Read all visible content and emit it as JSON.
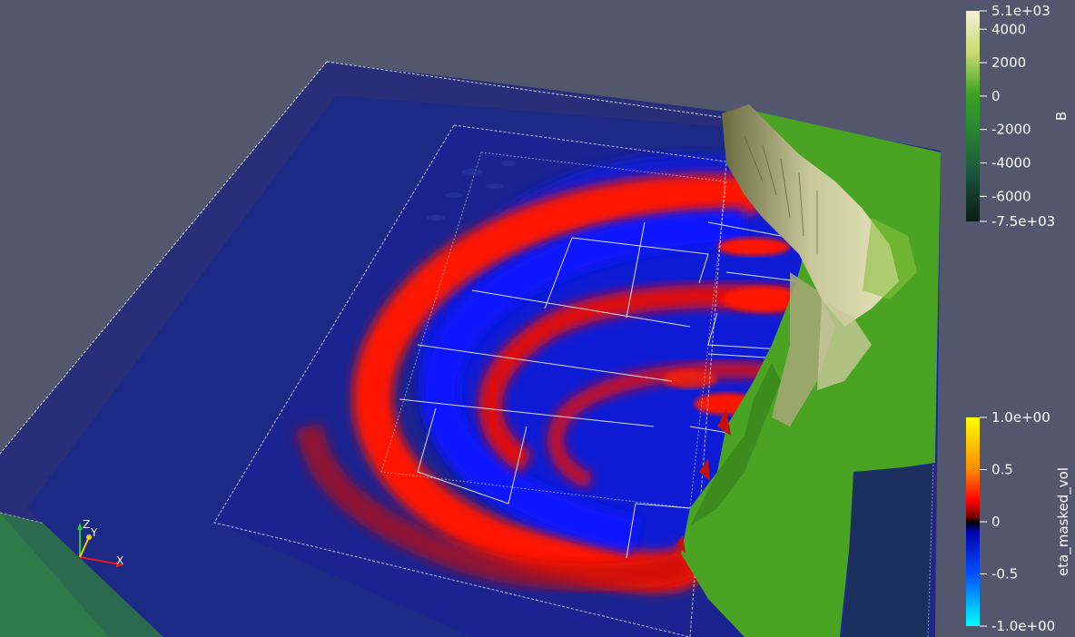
{
  "colorbar_top": {
    "title": "B",
    "ticks": [
      "5.1e+03",
      "4000",
      "2000",
      "0",
      "-2000",
      "-4000",
      "-6000",
      "-7.5e+03"
    ],
    "tick_values": [
      5100,
      4000,
      2000,
      0,
      -2000,
      -4000,
      -6000,
      -7500
    ],
    "range": [
      -7500,
      5100
    ],
    "colors": [
      "#f5f1d6",
      "#c8dc6e",
      "#5eb62c",
      "#2a9a26",
      "#23804a",
      "#1d5a3c",
      "#143a2c",
      "#0b1c16"
    ]
  },
  "colorbar_bottom": {
    "title": "eta_masked_vol",
    "ticks": [
      "1.0e+00",
      "0.5",
      "0",
      "-0.5",
      "-1.0e+00"
    ],
    "tick_values": [
      1.0,
      0.5,
      0,
      -0.5,
      -1.0
    ],
    "range": [
      -1.0,
      1.0
    ],
    "colors": [
      "#ffff00",
      "#ff8a00",
      "#ff0000",
      "#7a0000",
      "#000000",
      "#0000c8",
      "#0050ff",
      "#00d8ff",
      "#00ffff"
    ]
  },
  "orientation_axes": {
    "x_label": "X",
    "y_label": "Y",
    "z_label": "Z",
    "x_color": "#e02020",
    "y_color": "#f0d000",
    "z_color": "#20d020"
  },
  "scene": {
    "background": "#52576e",
    "ocean_color": "#1a2470",
    "land_color": "#4aa322",
    "wave_color": "#ff1500",
    "trough_color": "#0c1ad8"
  }
}
